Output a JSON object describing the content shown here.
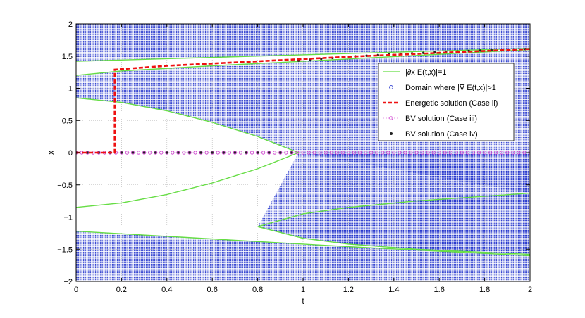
{
  "chart_data": {
    "type": "scatter",
    "xlabel": "t",
    "ylabel": "x",
    "xlim": [
      0,
      2
    ],
    "ylim": [
      -2,
      2
    ],
    "xticks": [
      "0",
      "0.2",
      "0.4",
      "0.6",
      "0.8",
      "1",
      "1.2",
      "1.4",
      "1.6",
      "1.8",
      "2"
    ],
    "yticks": [
      "2",
      "1.5",
      "1",
      "0.5",
      "0",
      "−0.5",
      "−1",
      "−1.5",
      "−2"
    ],
    "grid": true,
    "legend_position": "upper-right",
    "legend": [
      "|∂x E(t,x)|=1",
      "Domain where |∇ E(t,x)|>1",
      "Energetic solution (Case ii)",
      "BV solution (Case iii)",
      "BV solution (Case iv)"
    ],
    "colors": {
      "boundary": "#66dd44",
      "domain": "#2233cc",
      "energetic": "#ee1111",
      "bv_iii": "#cc33cc",
      "bv_iv": "#222222"
    },
    "boundary_curves": {
      "upper_top": {
        "t": [
          0,
          0.5,
          1.0,
          1.5,
          2.0
        ],
        "x": [
          1.42,
          1.47,
          1.52,
          1.57,
          1.62
        ]
      },
      "upper_bottom": {
        "t": [
          0,
          0.2,
          0.6,
          1.0,
          1.5,
          2.0
        ],
        "x": [
          1.2,
          1.27,
          1.35,
          1.42,
          1.51,
          1.6
        ]
      },
      "middle_top_branch": {
        "t": [
          0,
          0.2,
          0.4,
          0.6,
          0.8,
          0.98
        ],
        "x": [
          0.85,
          0.78,
          0.65,
          0.47,
          0.25,
          0.0
        ]
      },
      "middle_bottom_branch": {
        "t": [
          0,
          0.2,
          0.4,
          0.6,
          0.8,
          0.98
        ],
        "x": [
          -0.85,
          -0.78,
          -0.65,
          -0.47,
          -0.25,
          0.0
        ]
      },
      "lower_inner_top": {
        "t": [
          0.8,
          1.0,
          1.2,
          1.5,
          2.0
        ],
        "x": [
          -1.15,
          -0.95,
          -0.85,
          -0.75,
          -0.63
        ]
      },
      "lower_inner_bottom": {
        "t": [
          0.8,
          1.0,
          1.2,
          1.5,
          2.0
        ],
        "x": [
          -1.15,
          -1.33,
          -1.42,
          -1.5,
          -1.58
        ]
      },
      "lower_outer": {
        "t": [
          0,
          0.4,
          0.8,
          1.2,
          1.6,
          2.0
        ],
        "x": [
          -1.22,
          -1.3,
          -1.38,
          -1.46,
          -1.53,
          -1.6
        ]
      }
    },
    "energetic_solution": {
      "t": [
        0,
        0.17,
        0.17,
        0.4,
        0.8,
        1.2,
        1.6,
        2.0
      ],
      "x": [
        0,
        0,
        1.29,
        1.35,
        1.42,
        1.49,
        1.55,
        1.61
      ]
    },
    "bv_solution_iii": {
      "t_start": 0,
      "t_end": 2,
      "x": 0
    },
    "bv_solution_iv": {
      "lower": {
        "t_start": 0,
        "t_end": 0.98,
        "x": 0
      },
      "upper": {
        "t": [
          0.98,
          1.2,
          1.4,
          1.6,
          1.8,
          2.0
        ],
        "x": [
          1.43,
          1.49,
          1.53,
          1.56,
          1.59,
          1.61
        ]
      }
    }
  }
}
